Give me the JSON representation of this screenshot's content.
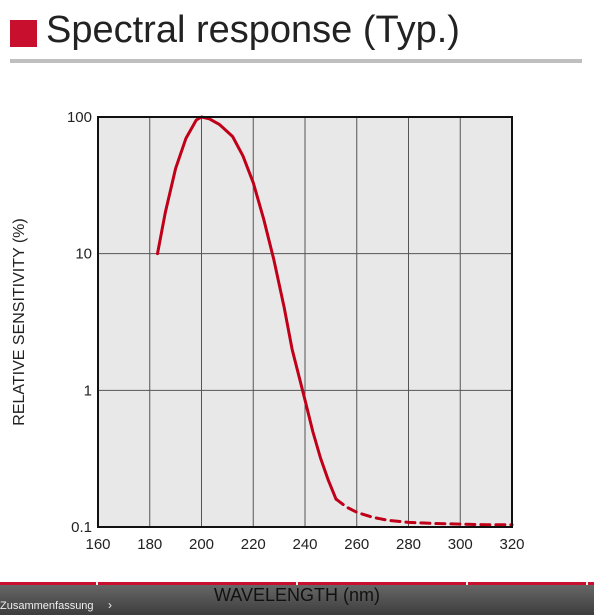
{
  "header": {
    "title": "Spectral response (Typ.)"
  },
  "chart_data": {
    "type": "line",
    "xlabel": "WAVELENGTH (nm)",
    "ylabel": "RELATIVE SENSITIVITY (%)",
    "xlim": [
      160,
      320
    ],
    "ylim": [
      0.1,
      100
    ],
    "yscale": "log",
    "grid": true,
    "x_ticks": [
      "160",
      "180",
      "200",
      "220",
      "240",
      "260",
      "280",
      "300",
      "320"
    ],
    "y_ticks": [
      "0.1",
      "1",
      "10",
      "100"
    ],
    "colors": {
      "series": "#c00018",
      "plot_bg": "#e8e8e8",
      "grid": "#555555"
    },
    "series": [
      {
        "style": "solid",
        "x": [
          183,
          186,
          190,
          194,
          198,
          200,
          203,
          207,
          212,
          216,
          220,
          224,
          228,
          232,
          235,
          238,
          240,
          243,
          246,
          249,
          252
        ],
        "y": [
          10,
          20,
          42,
          70,
          95,
          100,
          97,
          88,
          72,
          52,
          33,
          18,
          9,
          4,
          2,
          1.2,
          0.85,
          0.5,
          0.32,
          0.22,
          0.16
        ]
      },
      {
        "style": "dashed",
        "x": [
          252,
          256,
          260,
          266,
          272,
          280,
          290,
          300,
          310,
          320
        ],
        "y": [
          0.16,
          0.14,
          0.128,
          0.118,
          0.112,
          0.108,
          0.106,
          0.105,
          0.104,
          0.104
        ]
      }
    ]
  },
  "player": {
    "chapter_label": "Zusammenfassung",
    "chevron_icon": "chevron-right-icon"
  }
}
